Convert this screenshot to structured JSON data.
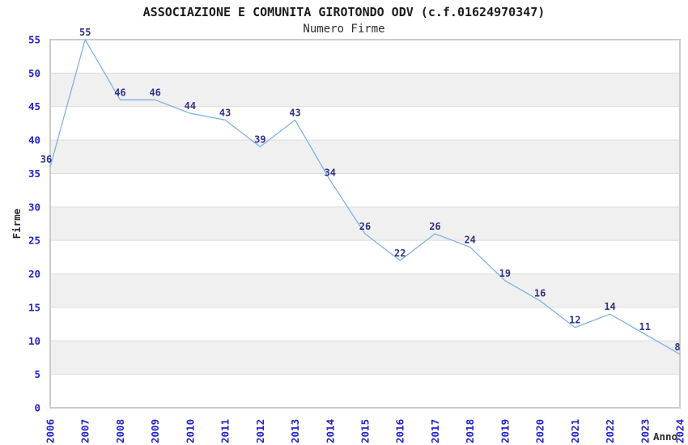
{
  "chart_data": {
    "type": "line",
    "title": "ASSOCIAZIONE E COMUNITA GIROTONDO ODV (c.f.01624970347)",
    "subtitle": "Numero Firme",
    "xlabel": "Anno",
    "ylabel": "Firme",
    "categories": [
      "2006",
      "2007",
      "2008",
      "2009",
      "2010",
      "2011",
      "2012",
      "2013",
      "2014",
      "2015",
      "2016",
      "2017",
      "2018",
      "2019",
      "2020",
      "2021",
      "2022",
      "2023",
      "2024"
    ],
    "series": [
      {
        "name": "Numero Firme",
        "values": [
          36,
          55,
          46,
          46,
          44,
          43,
          39,
          43,
          34,
          26,
          22,
          26,
          24,
          19,
          16,
          12,
          14,
          11,
          8
        ]
      }
    ],
    "ylim": [
      0,
      55
    ],
    "ytick_step": 5,
    "grid": true,
    "legend_position": "none",
    "value_labels_shown": true,
    "colors": {
      "line": "#7FB2E5",
      "tick_label": "#2222CC",
      "value_label": "#333388",
      "band": "#F0F0F0",
      "gridline": "#DCDCDC",
      "plot_border": "#CCCCCC",
      "axis_title": "#2A2A2A",
      "background": "#FFFFFF"
    }
  }
}
